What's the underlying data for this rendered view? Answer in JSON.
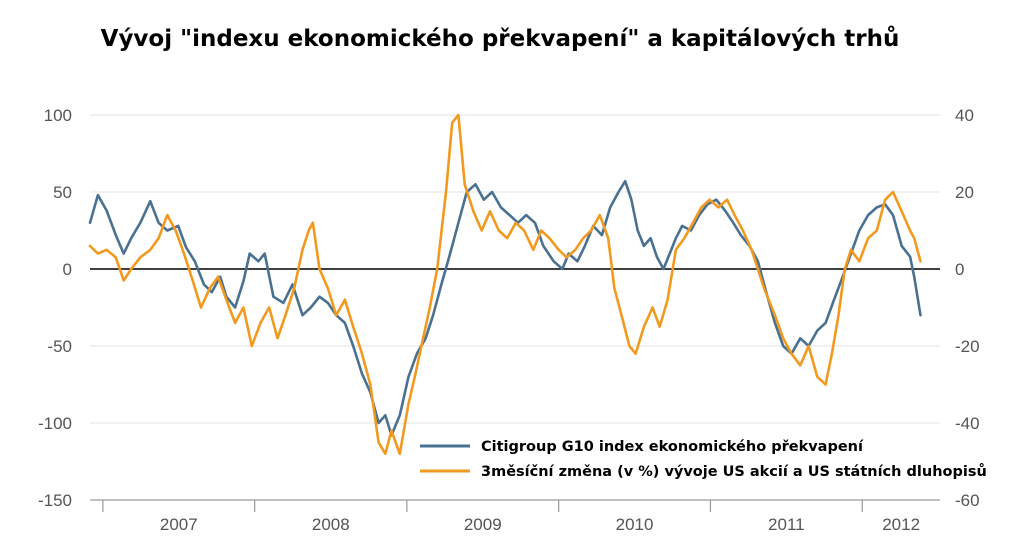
{
  "chart_data": {
    "type": "line",
    "title": "Vývoj \"indexu ekonomického překvapení\" a kapitálových trhů",
    "x_ticks": [
      "2007",
      "2008",
      "2009",
      "2010",
      "2011",
      "2012"
    ],
    "y_left": {
      "ticks": [
        "100",
        "50",
        "0",
        "-50",
        "-100",
        "-150"
      ],
      "range": [
        -150,
        100
      ]
    },
    "y_right": {
      "ticks": [
        "40",
        "20",
        "0",
        "-20",
        "-40",
        "-60"
      ],
      "range": [
        -60,
        40
      ]
    },
    "zero_line": true,
    "grid": "horizontal",
    "legend_position": "bottom-right",
    "series": [
      {
        "name": "Citigroup G10 index ekonomického překvapení",
        "axis": "left",
        "color": "#4a7190",
        "points": [
          [
            "2006-12-01",
            30
          ],
          [
            "2006-12-20",
            48
          ],
          [
            "2007-01-10",
            38
          ],
          [
            "2007-02-01",
            22
          ],
          [
            "2007-02-20",
            10
          ],
          [
            "2007-03-10",
            20
          ],
          [
            "2007-04-01",
            30
          ],
          [
            "2007-04-25",
            44
          ],
          [
            "2007-05-15",
            30
          ],
          [
            "2007-06-05",
            25
          ],
          [
            "2007-07-01",
            28
          ],
          [
            "2007-07-20",
            14
          ],
          [
            "2007-08-10",
            5
          ],
          [
            "2007-09-01",
            -10
          ],
          [
            "2007-09-20",
            -15
          ],
          [
            "2007-10-10",
            -5
          ],
          [
            "2007-10-25",
            -18
          ],
          [
            "2007-11-15",
            -25
          ],
          [
            "2007-12-05",
            -8
          ],
          [
            "2007-12-20",
            10
          ],
          [
            "2008-01-10",
            5
          ],
          [
            "2008-01-25",
            10
          ],
          [
            "2008-02-15",
            -18
          ],
          [
            "2008-03-10",
            -22
          ],
          [
            "2008-04-01",
            -10
          ],
          [
            "2008-04-25",
            -30
          ],
          [
            "2008-05-15",
            -25
          ],
          [
            "2008-06-05",
            -18
          ],
          [
            "2008-06-25",
            -22
          ],
          [
            "2008-07-15",
            -30
          ],
          [
            "2008-08-05",
            -35
          ],
          [
            "2008-08-25",
            -50
          ],
          [
            "2008-09-15",
            -68
          ],
          [
            "2008-10-05",
            -80
          ],
          [
            "2008-10-25",
            -100
          ],
          [
            "2008-11-10",
            -95
          ],
          [
            "2008-11-25",
            -108
          ],
          [
            "2008-12-15",
            -95
          ],
          [
            "2009-01-05",
            -70
          ],
          [
            "2009-01-25",
            -55
          ],
          [
            "2009-02-15",
            -45
          ],
          [
            "2009-03-05",
            -30
          ],
          [
            "2009-03-25",
            -10
          ],
          [
            "2009-04-15",
            10
          ],
          [
            "2009-05-05",
            30
          ],
          [
            "2009-05-25",
            50
          ],
          [
            "2009-06-15",
            55
          ],
          [
            "2009-07-05",
            45
          ],
          [
            "2009-07-25",
            50
          ],
          [
            "2009-08-15",
            40
          ],
          [
            "2009-09-05",
            35
          ],
          [
            "2009-09-25",
            30
          ],
          [
            "2009-10-15",
            35
          ],
          [
            "2009-11-05",
            30
          ],
          [
            "2009-11-25",
            15
          ],
          [
            "2009-12-20",
            5
          ],
          [
            "2010-01-10",
            0
          ],
          [
            "2010-01-25",
            10
          ],
          [
            "2010-02-15",
            5
          ],
          [
            "2010-03-05",
            15
          ],
          [
            "2010-03-25",
            28
          ],
          [
            "2010-04-15",
            22
          ],
          [
            "2010-05-05",
            40
          ],
          [
            "2010-05-25",
            50
          ],
          [
            "2010-06-10",
            57
          ],
          [
            "2010-06-25",
            45
          ],
          [
            "2010-07-10",
            25
          ],
          [
            "2010-07-25",
            15
          ],
          [
            "2010-08-10",
            20
          ],
          [
            "2010-08-25",
            8
          ],
          [
            "2010-09-10",
            0
          ],
          [
            "2010-09-25",
            10
          ],
          [
            "2010-10-10",
            20
          ],
          [
            "2010-10-25",
            28
          ],
          [
            "2010-11-15",
            25
          ],
          [
            "2010-12-05",
            35
          ],
          [
            "2010-12-25",
            42
          ],
          [
            "2011-01-15",
            45
          ],
          [
            "2011-02-05",
            38
          ],
          [
            "2011-02-25",
            30
          ],
          [
            "2011-03-15",
            22
          ],
          [
            "2011-04-05",
            15
          ],
          [
            "2011-04-25",
            5
          ],
          [
            "2011-05-15",
            -15
          ],
          [
            "2011-06-05",
            -35
          ],
          [
            "2011-06-25",
            -50
          ],
          [
            "2011-07-15",
            -55
          ],
          [
            "2011-08-05",
            -45
          ],
          [
            "2011-08-25",
            -50
          ],
          [
            "2011-09-15",
            -40
          ],
          [
            "2011-10-05",
            -35
          ],
          [
            "2011-10-25",
            -20
          ],
          [
            "2011-11-15",
            -5
          ],
          [
            "2011-12-05",
            10
          ],
          [
            "2011-12-25",
            25
          ],
          [
            "2012-01-15",
            35
          ],
          [
            "2012-02-05",
            40
          ],
          [
            "2012-02-25",
            42
          ],
          [
            "2012-03-15",
            35
          ],
          [
            "2012-04-05",
            15
          ],
          [
            "2012-04-25",
            8
          ],
          [
            "2012-05-05",
            -5
          ],
          [
            "2012-05-20",
            -30
          ]
        ]
      },
      {
        "name": "3měsíční změna (v %) vývoje US akcií a US státních dluhopisů",
        "axis": "right",
        "color": "#f29a1f",
        "points": [
          [
            "2006-12-01",
            6
          ],
          [
            "2006-12-20",
            4
          ],
          [
            "2007-01-10",
            5
          ],
          [
            "2007-02-01",
            3
          ],
          [
            "2007-02-20",
            -3
          ],
          [
            "2007-03-10",
            0
          ],
          [
            "2007-04-01",
            3
          ],
          [
            "2007-04-25",
            5
          ],
          [
            "2007-05-15",
            8
          ],
          [
            "2007-06-05",
            14
          ],
          [
            "2007-06-25",
            10
          ],
          [
            "2007-07-15",
            4
          ],
          [
            "2007-08-05",
            -3
          ],
          [
            "2007-08-25",
            -10
          ],
          [
            "2007-09-15",
            -5
          ],
          [
            "2007-10-05",
            -2
          ],
          [
            "2007-10-25",
            -8
          ],
          [
            "2007-11-15",
            -14
          ],
          [
            "2007-12-05",
            -10
          ],
          [
            "2007-12-25",
            -20
          ],
          [
            "2008-01-15",
            -14
          ],
          [
            "2008-02-05",
            -10
          ],
          [
            "2008-02-25",
            -18
          ],
          [
            "2008-03-15",
            -12
          ],
          [
            "2008-04-05",
            -5
          ],
          [
            "2008-04-25",
            5
          ],
          [
            "2008-05-10",
            10
          ],
          [
            "2008-05-20",
            12
          ],
          [
            "2008-06-05",
            0
          ],
          [
            "2008-06-25",
            -5
          ],
          [
            "2008-07-15",
            -12
          ],
          [
            "2008-08-05",
            -8
          ],
          [
            "2008-08-25",
            -15
          ],
          [
            "2008-09-15",
            -22
          ],
          [
            "2008-10-05",
            -30
          ],
          [
            "2008-10-25",
            -45
          ],
          [
            "2008-11-10",
            -48
          ],
          [
            "2008-11-25",
            -42
          ],
          [
            "2008-12-15",
            -48
          ],
          [
            "2009-01-05",
            -35
          ],
          [
            "2009-01-20",
            -28
          ],
          [
            "2009-02-05",
            -20
          ],
          [
            "2009-02-25",
            -10
          ],
          [
            "2009-03-15",
            0
          ],
          [
            "2009-04-05",
            20
          ],
          [
            "2009-04-20",
            38
          ],
          [
            "2009-05-05",
            40
          ],
          [
            "2009-05-20",
            22
          ],
          [
            "2009-06-10",
            15
          ],
          [
            "2009-06-30",
            10
          ],
          [
            "2009-07-20",
            15
          ],
          [
            "2009-08-10",
            10
          ],
          [
            "2009-08-30",
            8
          ],
          [
            "2009-09-20",
            12
          ],
          [
            "2009-10-10",
            10
          ],
          [
            "2009-11-01",
            5
          ],
          [
            "2009-11-20",
            10
          ],
          [
            "2009-12-10",
            8
          ],
          [
            "2010-01-01",
            5
          ],
          [
            "2010-01-20",
            3
          ],
          [
            "2010-02-10",
            5
          ],
          [
            "2010-03-01",
            8
          ],
          [
            "2010-03-20",
            10
          ],
          [
            "2010-04-10",
            14
          ],
          [
            "2010-04-30",
            8
          ],
          [
            "2010-05-15",
            -5
          ],
          [
            "2010-06-01",
            -12
          ],
          [
            "2010-06-20",
            -20
          ],
          [
            "2010-07-05",
            -22
          ],
          [
            "2010-07-25",
            -15
          ],
          [
            "2010-08-15",
            -10
          ],
          [
            "2010-09-01",
            -15
          ],
          [
            "2010-09-20",
            -8
          ],
          [
            "2010-10-10",
            5
          ],
          [
            "2010-10-30",
            8
          ],
          [
            "2010-11-20",
            12
          ],
          [
            "2010-12-10",
            16
          ],
          [
            "2010-12-30",
            18
          ],
          [
            "2011-01-20",
            16
          ],
          [
            "2011-02-10",
            18
          ],
          [
            "2011-02-28",
            14
          ],
          [
            "2011-03-20",
            10
          ],
          [
            "2011-04-10",
            5
          ],
          [
            "2011-04-25",
            0
          ],
          [
            "2011-05-10",
            -5
          ],
          [
            "2011-06-05",
            -12
          ],
          [
            "2011-06-25",
            -18
          ],
          [
            "2011-07-15",
            -22
          ],
          [
            "2011-08-05",
            -25
          ],
          [
            "2011-08-25",
            -20
          ],
          [
            "2011-09-15",
            -28
          ],
          [
            "2011-10-05",
            -30
          ],
          [
            "2011-10-20",
            -22
          ],
          [
            "2011-11-05",
            -12
          ],
          [
            "2011-11-20",
            0
          ],
          [
            "2011-12-05",
            5
          ],
          [
            "2011-12-25",
            2
          ],
          [
            "2012-01-15",
            8
          ],
          [
            "2012-02-05",
            10
          ],
          [
            "2012-02-25",
            18
          ],
          [
            "2012-03-15",
            20
          ],
          [
            "2012-04-05",
            15
          ],
          [
            "2012-04-25",
            10
          ],
          [
            "2012-05-05",
            8
          ],
          [
            "2012-05-20",
            2
          ]
        ]
      }
    ]
  }
}
